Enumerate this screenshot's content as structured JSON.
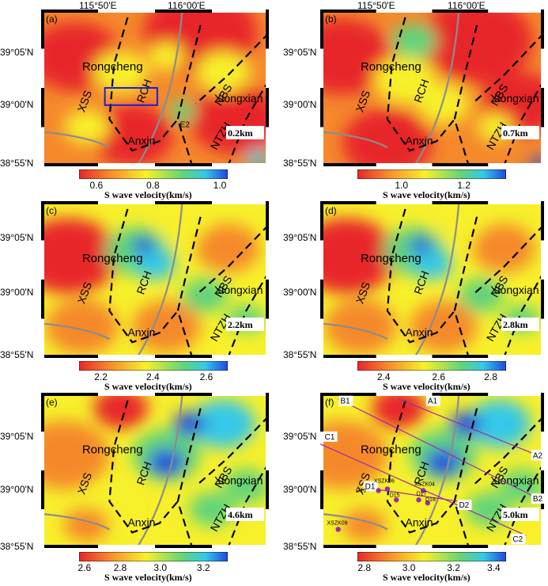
{
  "lon_labels": [
    "115°50'E",
    "116°00'E"
  ],
  "lat_labels": [
    "39°05'N",
    "39°00'N",
    "38°55'N"
  ],
  "place_labels": {
    "rongcheng": "Rongcheng",
    "anxin": "Anxin",
    "xiongxian": "Xiongxian",
    "xss": "XSS",
    "rch": "RCH",
    "nbs": "NBS",
    "ntzh": "NTZH",
    "e2": "E2"
  },
  "colorbar_title": "S wave velocity(km/s)",
  "panels": [
    {
      "id": "a",
      "tag": "(a)",
      "depth": "0.2km",
      "ticks": [
        "0.6",
        "0.8",
        "1.0"
      ],
      "theme": "slow"
    },
    {
      "id": "b",
      "tag": "(b)",
      "depth": "0.7km",
      "ticks": [
        "1.0",
        "1.2"
      ],
      "theme": "red"
    },
    {
      "id": "c",
      "tag": "(c)",
      "depth": "2.2km",
      "ticks": [
        "2.2",
        "2.4",
        "2.6"
      ],
      "theme": "mid"
    },
    {
      "id": "d",
      "tag": "(d)",
      "depth": "2.8km",
      "ticks": [
        "2.4",
        "2.6",
        "2.8"
      ],
      "theme": "mid"
    },
    {
      "id": "e",
      "tag": "(e)",
      "depth": "4.6km",
      "ticks": [
        "2.6",
        "2.8",
        "3.0",
        "3.2"
      ],
      "theme": "fast"
    },
    {
      "id": "f",
      "tag": "(f)",
      "depth": "5.0km",
      "ticks": [
        "2.8",
        "3.0",
        "3.2",
        "3.4"
      ],
      "theme": "fast"
    }
  ],
  "profiles": {
    "a1": "A1",
    "a2": "A2",
    "b1": "B1",
    "b2": "B2",
    "c1": "C1",
    "c2": "C2",
    "d1": "D1",
    "d2": "D2"
  },
  "stations": {
    "xszk06": "XSZK06",
    "xszk04": "XSZK04",
    "xszk09": "XSZK09",
    "d15": "D15",
    "d16": "D16",
    "d17": "D17",
    "d18": "D18"
  },
  "colors": {
    "red": "#e8262b",
    "orange": "#f5892c",
    "yellow": "#f7f02b",
    "green": "#61d47a",
    "cyan": "#34c8e8",
    "blue": "#2046e0",
    "fault_gray": "#8c8c8c",
    "box_blue": "#1a1fd6",
    "profile_purple": "#9c2aa8"
  }
}
